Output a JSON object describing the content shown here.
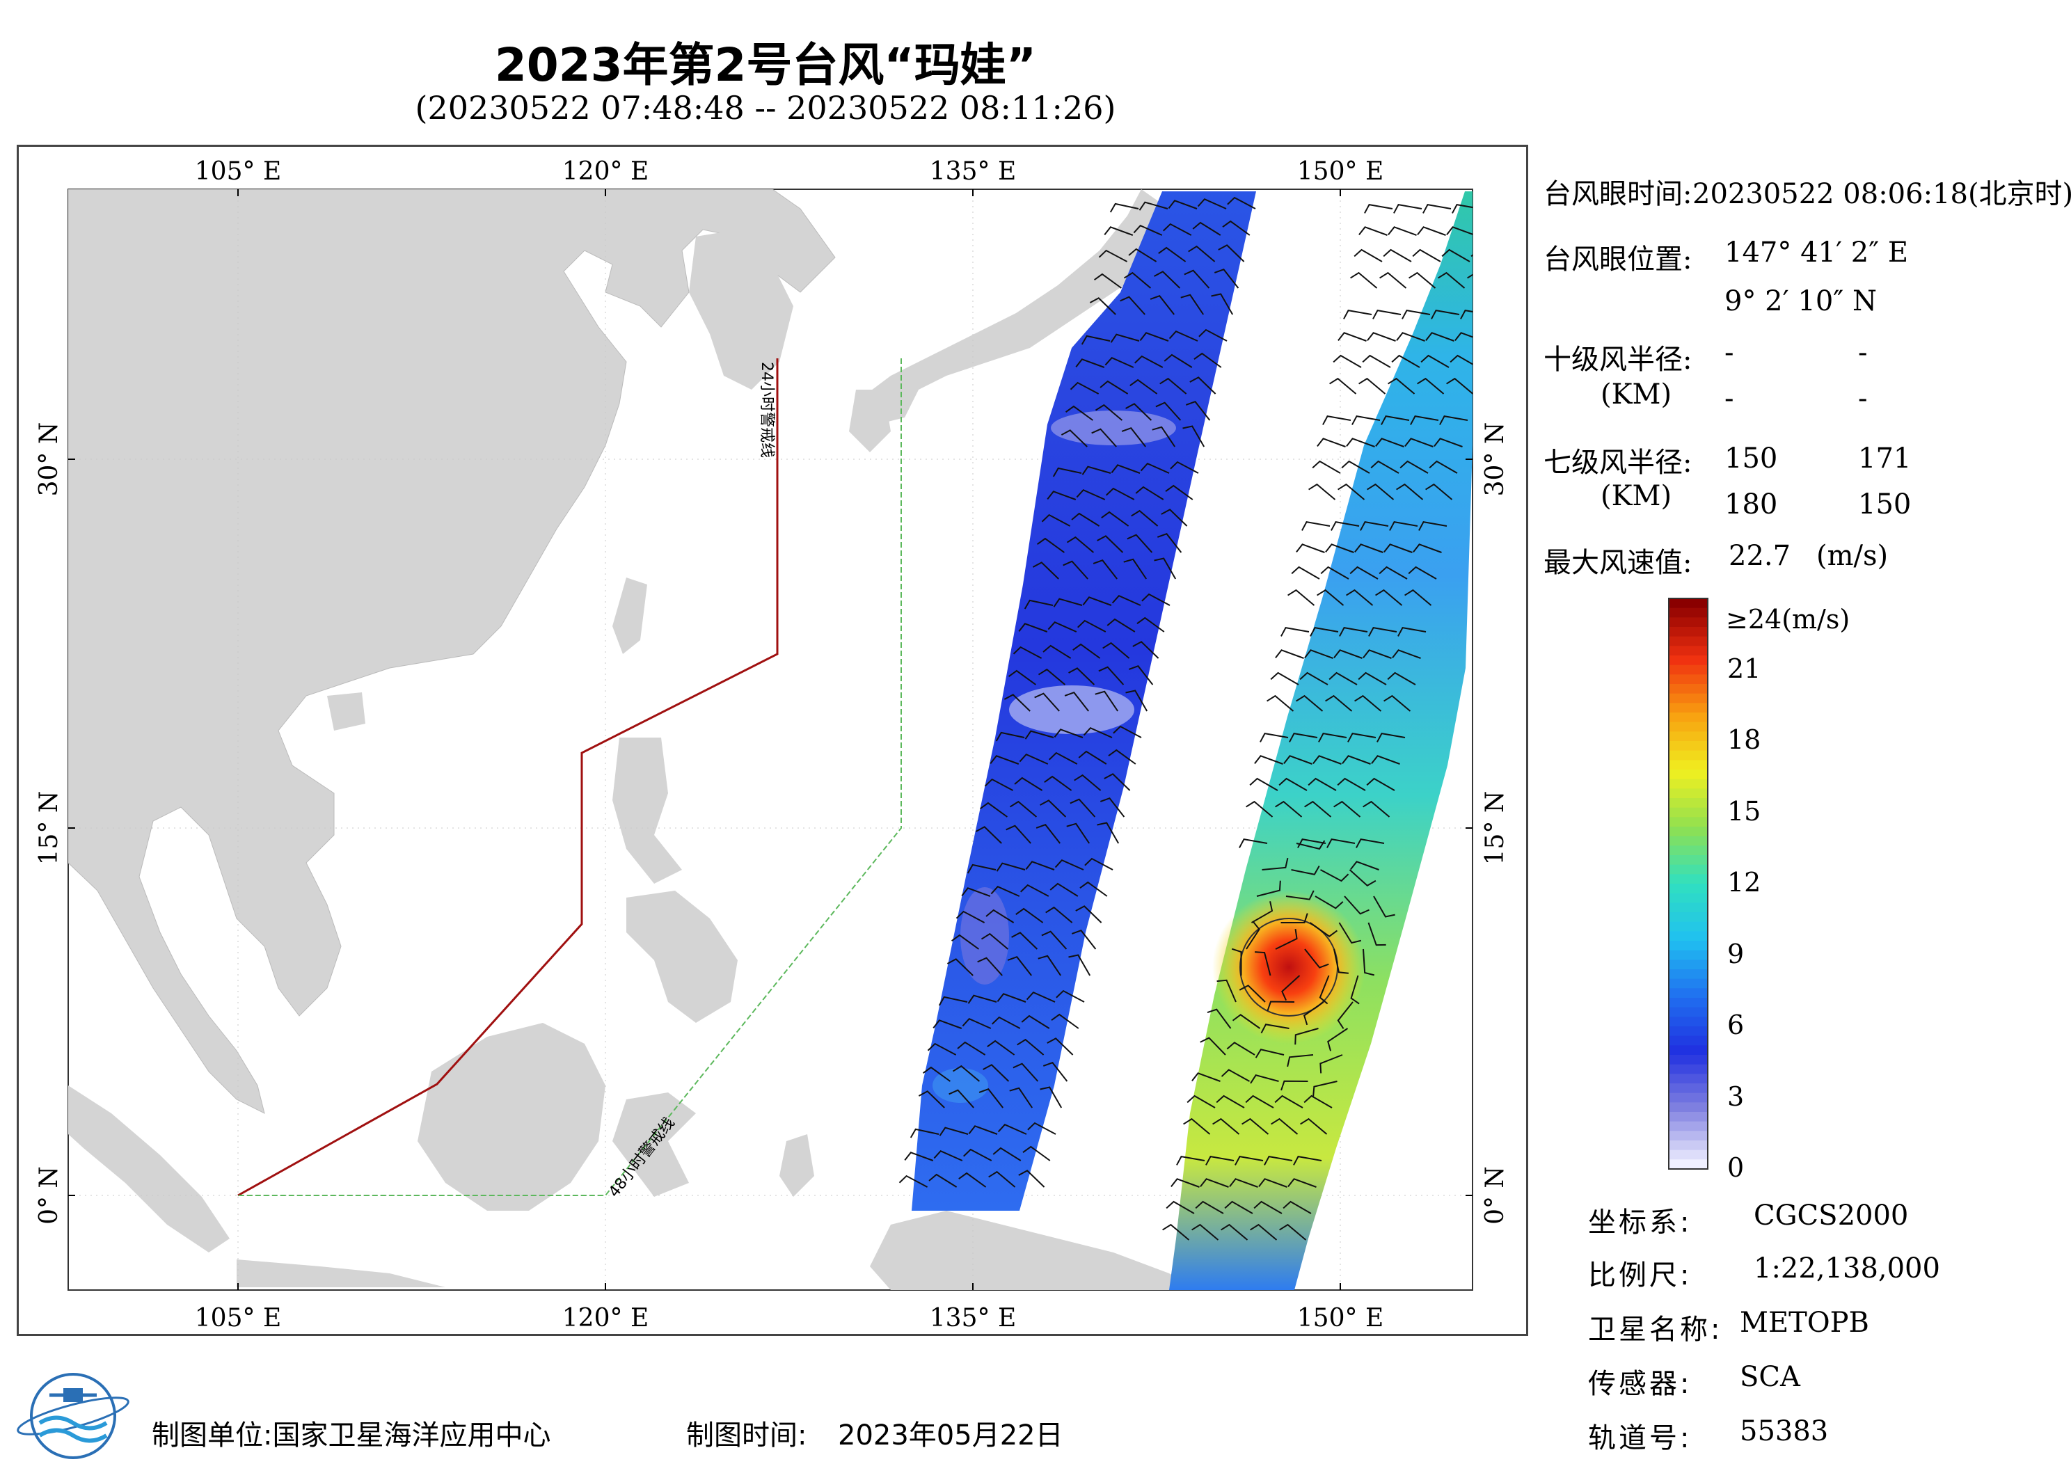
{
  "header": {
    "title": "2023年第2号台风“玛娃”",
    "subtitle": "(20230522 07:48:48 -- 20230522 08:11:26)"
  },
  "map": {
    "lon_ticks": [
      "105° E",
      "120° E",
      "135° E",
      "150° E"
    ],
    "lat_ticks": [
      "30° N",
      "15° N",
      "0° N"
    ],
    "warning_line_24h_label": "24小时警戒线",
    "warning_line_48h_label": "48小时警戒线",
    "colors": {
      "land": "#d4d4d4",
      "ocean": "#ffffff",
      "warning_24h": "#a01010",
      "warning_48h": "#5cb85c"
    }
  },
  "info_panel": {
    "eye_time_label": "台风眼时间:",
    "eye_time_value": "20230522 08:06:18(北京时)",
    "eye_pos_label": "台风眼位置:",
    "eye_lon": "147° 41′ 2″ E",
    "eye_lat": "9° 2′ 10″ N",
    "r10_label": "十级风半径:",
    "r10_unit": "(KM)",
    "r10_values": [
      "-",
      "-",
      "-",
      "-"
    ],
    "r7_label": "七级风半径:",
    "r7_unit": "(KM)",
    "r7_values": [
      "150",
      "171",
      "180",
      "150"
    ],
    "max_wind_label": "最大风速值:",
    "max_wind_value": "22.7",
    "max_wind_unit": "(m/s)"
  },
  "colorbar": {
    "top_label": "≥24(m/s)",
    "tick_labels": [
      "21",
      "18",
      "15",
      "12",
      "9",
      "6",
      "3",
      "0"
    ],
    "tick_values": [
      21,
      18,
      15,
      12,
      9,
      6,
      3,
      0
    ],
    "max": 24,
    "colors": [
      "#f0f0ff",
      "#8080e0",
      "#2030e0",
      "#2070f0",
      "#20c0f0",
      "#30e0c0",
      "#90e050",
      "#f0f020",
      "#f8a010",
      "#f03010",
      "#8a0000"
    ]
  },
  "metadata": {
    "coord_label": "坐标系:",
    "coord_value": "CGCS2000",
    "scale_label": "比例尺:",
    "scale_value": "1:22,138,000",
    "satellite_label": "卫星名称:",
    "satellite_value": "METOPB",
    "sensor_label": "传感器:",
    "sensor_value": "SCA",
    "orbit_label": "轨道号:",
    "orbit_value": "55383"
  },
  "footer": {
    "producer": "制图单位:国家卫星海洋应用中心",
    "date_label": "制图时间:",
    "date_value": "2023年05月22日"
  }
}
